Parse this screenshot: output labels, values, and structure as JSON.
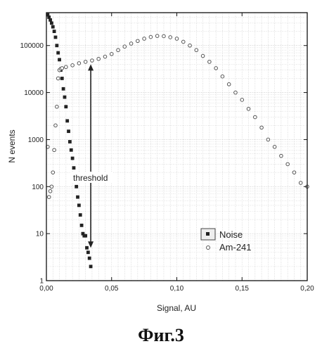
{
  "figure_caption": "Фиг.3",
  "chart_data": {
    "type": "scatter",
    "xlabel": "Signal, AU",
    "ylabel": "N events",
    "xlim": [
      0.0,
      0.2
    ],
    "ylim": [
      1,
      500000
    ],
    "yscale": "log",
    "grid": true,
    "x_ticks": [
      0.0,
      0.05,
      0.1,
      0.15,
      0.2
    ],
    "x_tick_labels": [
      "0,00",
      "0,05",
      "0,10",
      "0,15",
      "0,20"
    ],
    "y_ticks": [
      1,
      10,
      100,
      1000,
      10000,
      100000
    ],
    "y_tick_labels": [
      "1",
      "10",
      "100",
      "1000",
      "10000",
      "100000"
    ],
    "legend_position": "bottom-right",
    "annotations": [
      {
        "text": "threshold",
        "type": "double-arrow",
        "x": 0.034,
        "y_from": 5,
        "y_to": 40000
      }
    ],
    "series": [
      {
        "name": "Noise",
        "marker": "square",
        "color": "#222222",
        "x": [
          0.001,
          0.002,
          0.003,
          0.004,
          0.005,
          0.006,
          0.007,
          0.008,
          0.009,
          0.01,
          0.011,
          0.012,
          0.013,
          0.014,
          0.015,
          0.016,
          0.017,
          0.018,
          0.019,
          0.02,
          0.021,
          0.022,
          0.023,
          0.024,
          0.025,
          0.026,
          0.027,
          0.028,
          0.029,
          0.03,
          0.031,
          0.032,
          0.033,
          0.034
        ],
        "y": [
          450000,
          400000,
          350000,
          300000,
          250000,
          200000,
          150000,
          100000,
          70000,
          50000,
          30000,
          20000,
          12000,
          8000,
          5000,
          2500,
          1500,
          900,
          600,
          400,
          250,
          150,
          100,
          60,
          40,
          25,
          15,
          10,
          9,
          9,
          5,
          4,
          3,
          2
        ]
      },
      {
        "name": "Am-241",
        "marker": "circle",
        "color": "#555555",
        "x": [
          0.001,
          0.002,
          0.003,
          0.004,
          0.005,
          0.006,
          0.007,
          0.008,
          0.009,
          0.01,
          0.011,
          0.012,
          0.015,
          0.02,
          0.025,
          0.03,
          0.035,
          0.04,
          0.045,
          0.05,
          0.055,
          0.06,
          0.065,
          0.07,
          0.075,
          0.08,
          0.085,
          0.09,
          0.095,
          0.1,
          0.105,
          0.11,
          0.115,
          0.12,
          0.125,
          0.13,
          0.135,
          0.14,
          0.145,
          0.15,
          0.155,
          0.16,
          0.165,
          0.17,
          0.175,
          0.18,
          0.185,
          0.19,
          0.195,
          0.2
        ],
        "y": [
          700,
          60,
          80,
          100,
          200,
          600,
          2000,
          5000,
          20000,
          30000,
          32000,
          33000,
          35000,
          38000,
          42000,
          45000,
          48000,
          52000,
          58000,
          66000,
          80000,
          95000,
          110000,
          125000,
          140000,
          152000,
          160000,
          158000,
          150000,
          140000,
          120000,
          100000,
          80000,
          60000,
          45000,
          33000,
          22000,
          15000,
          10000,
          7000,
          4500,
          3000,
          1800,
          1000,
          700,
          450,
          300,
          200,
          120,
          100
        ]
      }
    ]
  }
}
